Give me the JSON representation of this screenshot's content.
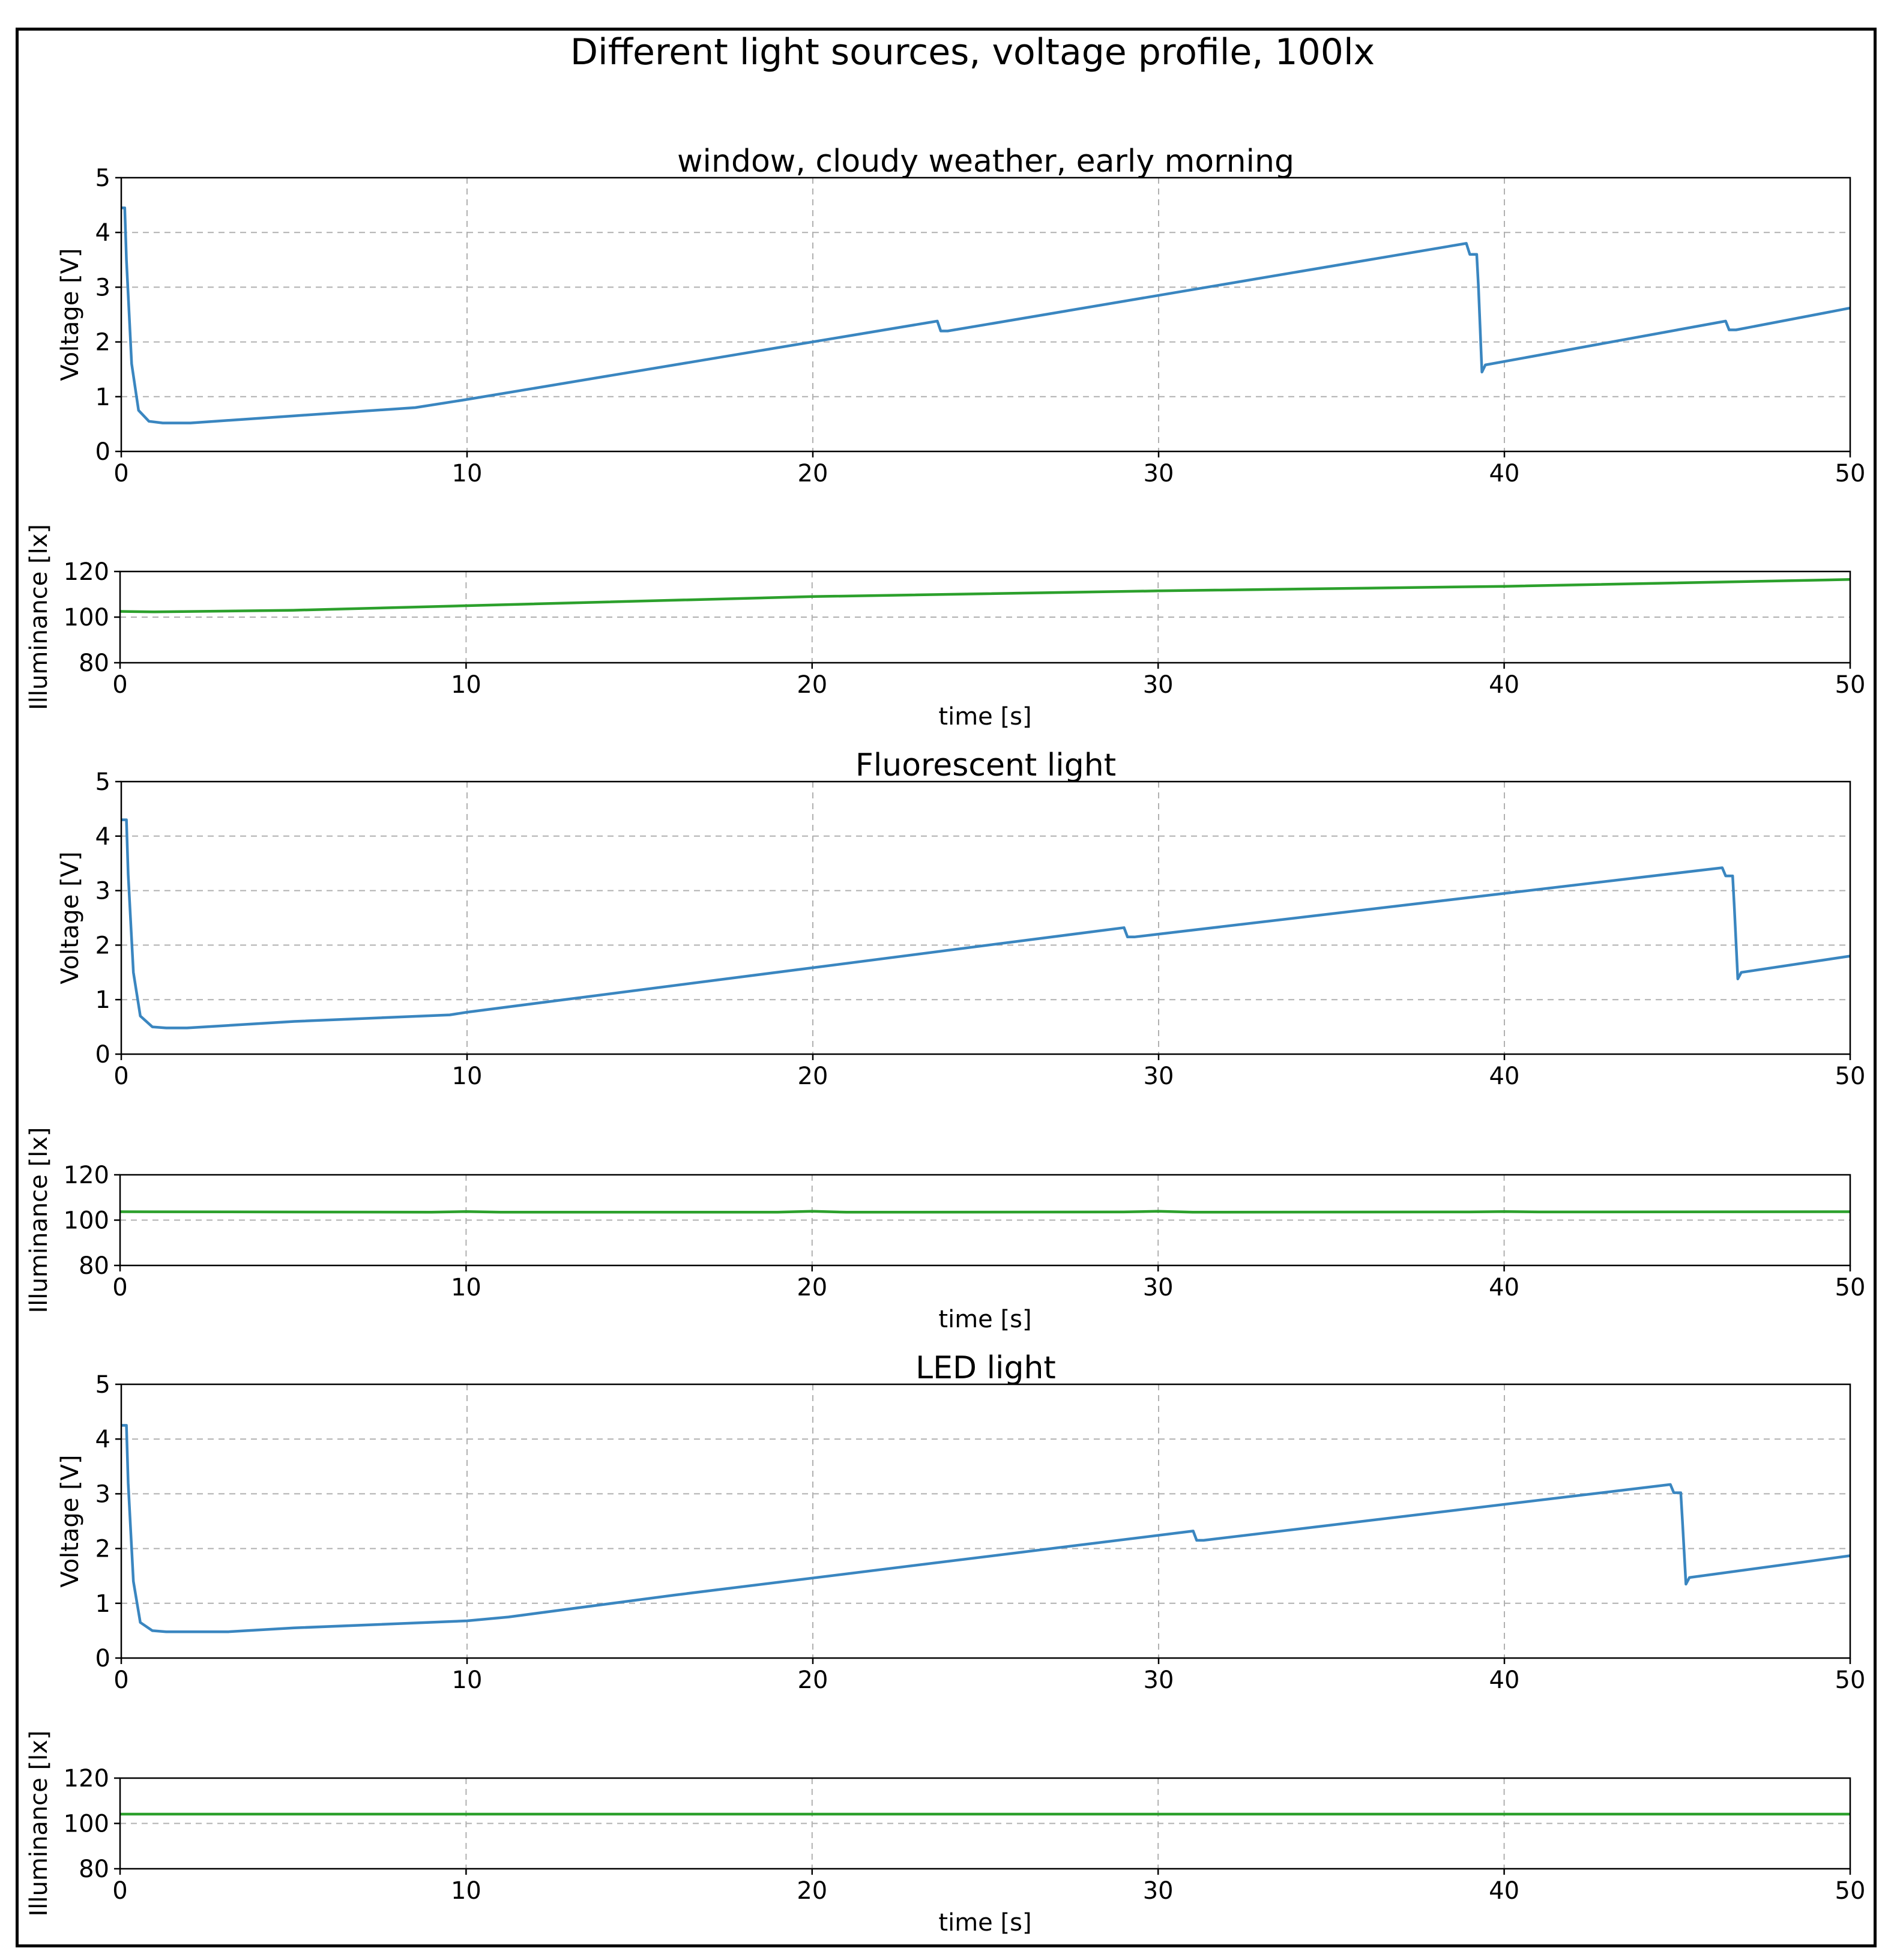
{
  "title": "Different light sources, voltage profile, 100lx",
  "colors": {
    "voltage": "#3a86c0",
    "illuminance": "#2ca02c",
    "grid": "#b0b0b0",
    "frame": "#000000"
  },
  "chart_data": [
    {
      "type": "line",
      "title": "window, cloudy weather, early morning",
      "xlabel": "",
      "ylabel": "Voltage [V]",
      "xlim": [
        0,
        50
      ],
      "ylim": [
        0,
        5
      ],
      "xticks": [
        "0",
        "10",
        "20",
        "30",
        "40",
        "50"
      ],
      "yticks": [
        "0",
        "1",
        "2",
        "3",
        "4",
        "5"
      ],
      "grid": true,
      "series": [
        {
          "name": "voltage",
          "x": [
            0,
            0.1,
            0.15,
            0.3,
            0.5,
            0.8,
            1.2,
            2,
            5,
            8.5,
            10,
            23.6,
            23.7,
            23.9,
            38.9,
            39.0,
            39.2,
            39.25,
            39.35,
            39.45,
            46.4,
            46.5,
            46.7,
            50
          ],
          "y": [
            4.45,
            4.45,
            3.5,
            1.6,
            0.75,
            0.55,
            0.52,
            0.52,
            0.65,
            0.8,
            0.95,
            2.38,
            2.2,
            2.2,
            3.8,
            3.6,
            3.6,
            3.0,
            1.45,
            1.58,
            2.38,
            2.22,
            2.22,
            2.62
          ]
        }
      ]
    },
    {
      "type": "line",
      "xlabel": "time [s]",
      "ylabel": "Illuminance [lx]",
      "xlim": [
        0,
        50
      ],
      "ylim": [
        80,
        120
      ],
      "xticks": [
        "0",
        "10",
        "20",
        "30",
        "40",
        "50"
      ],
      "yticks": [
        "80",
        "100",
        "120"
      ],
      "grid": true,
      "series": [
        {
          "name": "illuminance",
          "x": [
            0,
            1,
            5,
            10,
            20,
            30,
            40,
            50
          ],
          "y": [
            102.5,
            102.3,
            103.0,
            105.0,
            109.0,
            111.5,
            113.5,
            116.5
          ]
        }
      ]
    },
    {
      "type": "line",
      "title": "Fluorescent light",
      "xlabel": "",
      "ylabel": "Voltage [V]",
      "xlim": [
        0,
        50
      ],
      "ylim": [
        0,
        5
      ],
      "xticks": [
        "0",
        "10",
        "20",
        "30",
        "40",
        "50"
      ],
      "yticks": [
        "0",
        "1",
        "2",
        "3",
        "4",
        "5"
      ],
      "grid": true,
      "series": [
        {
          "name": "voltage",
          "x": [
            0,
            0.15,
            0.2,
            0.35,
            0.55,
            0.9,
            1.3,
            1.9,
            5,
            9.5,
            10,
            29.0,
            29.1,
            29.3,
            46.3,
            46.4,
            46.6,
            46.65,
            46.75,
            46.85,
            50
          ],
          "y": [
            4.3,
            4.3,
            3.3,
            1.5,
            0.7,
            0.5,
            0.48,
            0.48,
            0.6,
            0.72,
            0.77,
            2.32,
            2.15,
            2.15,
            3.42,
            3.27,
            3.27,
            2.7,
            1.38,
            1.5,
            1.8
          ]
        }
      ]
    },
    {
      "type": "line",
      "xlabel": "time [s]",
      "ylabel": "Illuminance [lx]",
      "xlim": [
        0,
        50
      ],
      "ylim": [
        80,
        120
      ],
      "xticks": [
        "0",
        "10",
        "20",
        "30",
        "40",
        "50"
      ],
      "yticks": [
        "80",
        "100",
        "120"
      ],
      "grid": true,
      "series": [
        {
          "name": "illuminance",
          "x": [
            0,
            9,
            10,
            11,
            19,
            20,
            21,
            29,
            30,
            31,
            39,
            40,
            41,
            50
          ],
          "y": [
            103.7,
            103.5,
            103.8,
            103.5,
            103.5,
            103.9,
            103.5,
            103.6,
            103.9,
            103.5,
            103.6,
            103.8,
            103.6,
            103.7
          ]
        }
      ]
    },
    {
      "type": "line",
      "title": "LED light",
      "xlabel": "",
      "ylabel": "Voltage [V]",
      "xlim": [
        0,
        50
      ],
      "ylim": [
        0,
        5
      ],
      "xticks": [
        "0",
        "10",
        "20",
        "30",
        "40",
        "50"
      ],
      "yticks": [
        "0",
        "1",
        "2",
        "3",
        "4",
        "5"
      ],
      "grid": true,
      "series": [
        {
          "name": "voltage",
          "x": [
            0,
            0.15,
            0.2,
            0.35,
            0.55,
            0.9,
            1.3,
            3.1,
            5,
            10,
            11.2,
            16,
            31.0,
            31.1,
            31.3,
            44.8,
            44.9,
            45.1,
            45.15,
            45.25,
            45.35,
            50
          ],
          "y": [
            4.25,
            4.25,
            3.2,
            1.4,
            0.65,
            0.5,
            0.48,
            0.48,
            0.55,
            0.68,
            0.75,
            1.15,
            2.32,
            2.15,
            2.15,
            3.17,
            3.02,
            3.02,
            2.5,
            1.35,
            1.47,
            1.87
          ]
        }
      ]
    },
    {
      "type": "line",
      "xlabel": "time [s]",
      "ylabel": "Illuminance [lx]",
      "xlim": [
        0,
        50
      ],
      "ylim": [
        80,
        120
      ],
      "xticks": [
        "0",
        "10",
        "20",
        "30",
        "40",
        "50"
      ],
      "yticks": [
        "80",
        "100",
        "120"
      ],
      "grid": true,
      "series": [
        {
          "name": "illuminance",
          "x": [
            0,
            10,
            20,
            30,
            40,
            50
          ],
          "y": [
            104.1,
            104.1,
            104.1,
            104.1,
            104.1,
            104.1
          ]
        }
      ]
    }
  ]
}
